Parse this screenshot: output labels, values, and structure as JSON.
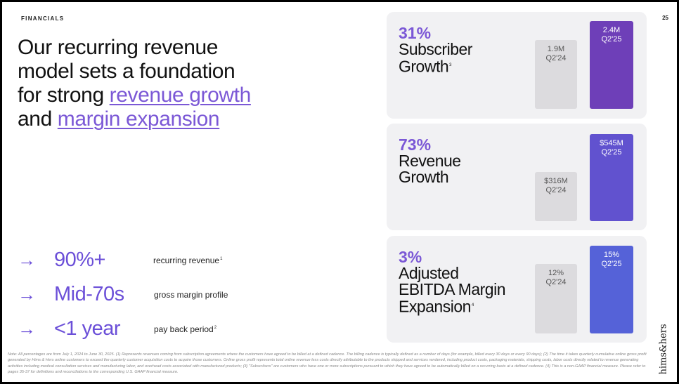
{
  "header": {
    "section": "FINANCIALS",
    "page_number": "25"
  },
  "headline": {
    "line1": "Our recurring revenue",
    "line2": "model sets a foundation",
    "line3_prefix": "for strong ",
    "line3_highlight": "revenue growth",
    "line4_prefix": "and ",
    "line4_highlight": "margin expansion"
  },
  "stats": [
    {
      "arrow": "→",
      "value": "90%+",
      "label": "recurring revenue",
      "sup": "1"
    },
    {
      "arrow": "→",
      "value": "Mid-70s",
      "label": "gross margin profile",
      "sup": ""
    },
    {
      "arrow": "→",
      "value": "<1 year",
      "label": "pay back period",
      "sup": "2"
    }
  ],
  "cards": [
    {
      "pct": "31%",
      "metric_lines": [
        "Subscriber",
        "Growth"
      ],
      "sup": "3",
      "prior": {
        "value": "1.9M",
        "period": "Q2'24"
      },
      "current": {
        "value": "2.4M",
        "period": "Q2'25",
        "color": "#6e3fb8"
      }
    },
    {
      "pct": "73%",
      "metric_lines": [
        "Revenue",
        "Growth"
      ],
      "sup": "",
      "prior": {
        "value": "$316M",
        "period": "Q2'24"
      },
      "current": {
        "value": "$545M",
        "period": "Q2'25",
        "color": "#6152cf"
      }
    },
    {
      "pct": "3%",
      "metric_lines": [
        "Adjusted",
        "EBITDA Margin",
        "Expansion"
      ],
      "sup": "4",
      "prior": {
        "value": "12%",
        "period": "Q2'24"
      },
      "current": {
        "value": "15%",
        "period": "Q2'25",
        "color": "#5562d8"
      }
    }
  ],
  "footnote": "Note: All percentages are from July 1, 2024 to June 30, 2025. (1) Represents revenues coming from subscription agreements where the customers have agreed to be billed at a defined cadence. The billing cadence is typically defined as a number of days (for example, billed every 30 days or every 90 days); (2) The time it takes quarterly cumulative online gross profit generated by Hims & Hers online customers to exceed the quarterly customer acquisition costs to acquire those customers. Online gross profit represents total online revenue less costs directly attributable to the products shipped and services rendered, including product costs, packaging materials, shipping costs, labor costs directly related to revenue generating activities including medical consultation services and manufacturing labor, and overhead costs associated with manufactured products; (3) \"Subscribers\" are customers who have one or more subscriptions pursuant to which they have agreed to be automatically billed on a recurring basis at a defined cadence. (4) This is a non-GAAP financial measure. Please refer to pages 35-37 for definitions and reconciliations to the corresponding U.S. GAAP financial measure.",
  "logo": "hims&hers",
  "colors": {
    "accent": "#7b58d6",
    "card_bg": "#f1f1f3",
    "prior_bar": "#dcdbde"
  }
}
